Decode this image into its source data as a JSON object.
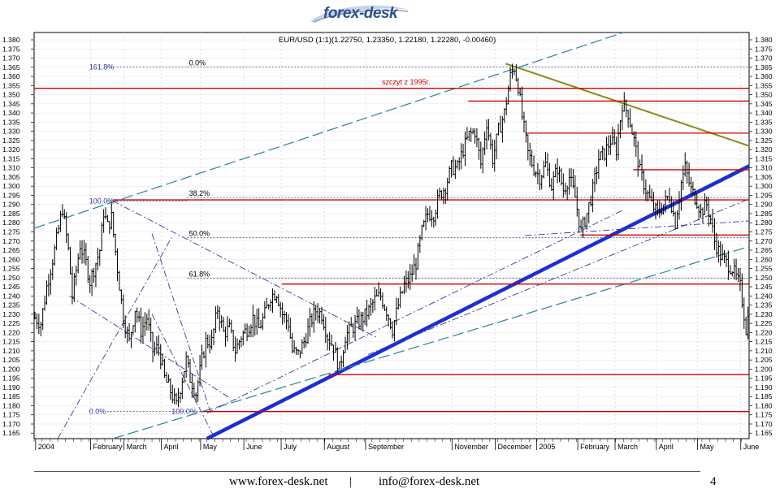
{
  "header": {
    "logo_text": "forex-desk"
  },
  "footer": {
    "website": "www.forex-desk.net",
    "separator": "|",
    "email": "info@forex-desk.net",
    "page_number": "4"
  },
  "chart_data": {
    "type": "candlestick",
    "title": "EUR/USD (1:1)(1.22750, 1.23350, 1.22180, 1.22280, -0.00460)",
    "ylim": [
      1.162,
      1.384
    ],
    "y_ticks": [
      1.165,
      1.17,
      1.175,
      1.18,
      1.185,
      1.19,
      1.195,
      1.2,
      1.205,
      1.21,
      1.215,
      1.22,
      1.225,
      1.23,
      1.235,
      1.24,
      1.245,
      1.25,
      1.255,
      1.26,
      1.265,
      1.27,
      1.275,
      1.28,
      1.285,
      1.29,
      1.295,
      1.3,
      1.305,
      1.31,
      1.315,
      1.32,
      1.325,
      1.33,
      1.335,
      1.34,
      1.345,
      1.35,
      1.355,
      1.36,
      1.365,
      1.37,
      1.375,
      1.38
    ],
    "x_labels": [
      {
        "label": "2004",
        "idx": 2
      },
      {
        "label": "February",
        "idx": 30
      },
      {
        "label": "March",
        "idx": 47
      },
      {
        "label": "April",
        "idx": 66
      },
      {
        "label": "May",
        "idx": 86
      },
      {
        "label": "June",
        "idx": 108
      },
      {
        "label": "July",
        "idx": 127
      },
      {
        "label": "August",
        "idx": 149
      },
      {
        "label": "September",
        "idx": 170
      },
      {
        "label": "November",
        "idx": 214
      },
      {
        "label": "December",
        "idx": 236
      },
      {
        "label": "2005",
        "idx": 257
      },
      {
        "label": "February",
        "idx": 278
      },
      {
        "label": "March",
        "idx": 297
      },
      {
        "label": "April",
        "idx": 318
      },
      {
        "label": "May",
        "idx": 339
      },
      {
        "label": "June",
        "idx": 361
      }
    ],
    "series_close_points": [
      [
        0,
        1.228
      ],
      [
        3,
        1.225
      ],
      [
        6,
        1.245
      ],
      [
        10,
        1.265
      ],
      [
        14,
        1.288
      ],
      [
        17,
        1.265
      ],
      [
        19,
        1.24
      ],
      [
        23,
        1.268
      ],
      [
        26,
        1.258
      ],
      [
        28,
        1.248
      ],
      [
        31,
        1.258
      ],
      [
        33,
        1.265
      ],
      [
        35,
        1.286
      ],
      [
        37,
        1.278
      ],
      [
        39,
        1.283
      ],
      [
        42,
        1.255
      ],
      [
        45,
        1.228
      ],
      [
        48,
        1.215
      ],
      [
        51,
        1.233
      ],
      [
        54,
        1.221
      ],
      [
        57,
        1.228
      ],
      [
        60,
        1.21
      ],
      [
        63,
        1.212
      ],
      [
        66,
        1.195
      ],
      [
        69,
        1.188
      ],
      [
        72,
        1.18
      ],
      [
        74,
        1.19
      ],
      [
        77,
        1.205
      ],
      [
        79,
        1.195
      ],
      [
        82,
        1.187
      ],
      [
        85,
        1.205
      ],
      [
        87,
        1.215
      ],
      [
        90,
        1.215
      ],
      [
        93,
        1.233
      ],
      [
        96,
        1.22
      ],
      [
        99,
        1.222
      ],
      [
        102,
        1.21
      ],
      [
        105,
        1.218
      ],
      [
        108,
        1.222
      ],
      [
        111,
        1.228
      ],
      [
        114,
        1.222
      ],
      [
        117,
        1.23
      ],
      [
        120,
        1.24
      ],
      [
        123,
        1.242
      ],
      [
        126,
        1.23
      ],
      [
        129,
        1.225
      ],
      [
        131,
        1.21
      ],
      [
        134,
        1.208
      ],
      [
        137,
        1.215
      ],
      [
        140,
        1.225
      ],
      [
        143,
        1.232
      ],
      [
        146,
        1.23
      ],
      [
        149,
        1.218
      ],
      [
        152,
        1.212
      ],
      [
        155,
        1.2
      ],
      [
        158,
        1.218
      ],
      [
        161,
        1.222
      ],
      [
        164,
        1.225
      ],
      [
        167,
        1.228
      ],
      [
        170,
        1.232
      ],
      [
        173,
        1.238
      ],
      [
        176,
        1.24
      ],
      [
        179,
        1.232
      ],
      [
        182,
        1.222
      ],
      [
        185,
        1.235
      ],
      [
        188,
        1.246
      ],
      [
        191,
        1.25
      ],
      [
        194,
        1.258
      ],
      [
        197,
        1.275
      ],
      [
        200,
        1.285
      ],
      [
        203,
        1.285
      ],
      [
        206,
        1.295
      ],
      [
        209,
        1.3
      ],
      [
        212,
        1.31
      ],
      [
        215,
        1.31
      ],
      [
        218,
        1.32
      ],
      [
        221,
        1.328
      ],
      [
        224,
        1.33
      ],
      [
        227,
        1.312
      ],
      [
        230,
        1.335
      ],
      [
        233,
        1.315
      ],
      [
        236,
        1.33
      ],
      [
        239,
        1.34
      ],
      [
        242,
        1.36
      ],
      [
        244,
        1.365
      ],
      [
        246,
        1.355
      ],
      [
        248,
        1.338
      ],
      [
        251,
        1.318
      ],
      [
        254,
        1.31
      ],
      [
        257,
        1.305
      ],
      [
        260,
        1.312
      ],
      [
        263,
        1.3
      ],
      [
        266,
        1.31
      ],
      [
        269,
        1.298
      ],
      [
        272,
        1.305
      ],
      [
        275,
        1.294
      ],
      [
        278,
        1.275
      ],
      [
        281,
        1.285
      ],
      [
        284,
        1.298
      ],
      [
        287,
        1.315
      ],
      [
        290,
        1.318
      ],
      [
        293,
        1.325
      ],
      [
        296,
        1.32
      ],
      [
        299,
        1.345
      ],
      [
        302,
        1.34
      ],
      [
        305,
        1.325
      ],
      [
        308,
        1.308
      ],
      [
        311,
        1.298
      ],
      [
        314,
        1.29
      ],
      [
        317,
        1.285
      ],
      [
        320,
        1.29
      ],
      [
        323,
        1.295
      ],
      [
        326,
        1.28
      ],
      [
        329,
        1.302
      ],
      [
        331,
        1.31
      ],
      [
        334,
        1.298
      ],
      [
        337,
        1.292
      ],
      [
        339,
        1.286
      ],
      [
        342,
        1.29
      ],
      [
        344,
        1.282
      ],
      [
        346,
        1.27
      ],
      [
        349,
        1.262
      ],
      [
        352,
        1.258
      ],
      [
        355,
        1.255
      ],
      [
        357,
        1.25
      ],
      [
        359,
        1.245
      ],
      [
        361,
        1.23
      ],
      [
        362,
        1.222
      ],
      [
        363,
        1.228
      ]
    ],
    "n_bars": 364,
    "horizontal_levels": [
      {
        "price": 1.3535,
        "from": 0,
        "to": 364,
        "color": "#cc0000"
      },
      {
        "price": 1.3465,
        "from": 221,
        "to": 364,
        "color": "#cc0000"
      },
      {
        "price": 1.329,
        "from": 250,
        "to": 364,
        "color": "#cc0000"
      },
      {
        "price": 1.309,
        "from": 305,
        "to": 364,
        "color": "#cc0000"
      },
      {
        "price": 1.2925,
        "from": 40,
        "to": 364,
        "color": "#cc0000"
      },
      {
        "price": 1.2733,
        "from": 278,
        "to": 364,
        "color": "#cc0000"
      },
      {
        "price": 1.2465,
        "from": 126,
        "to": 364,
        "color": "#cc0000"
      },
      {
        "price": 1.197,
        "from": 150,
        "to": 364,
        "color": "#cc0000"
      },
      {
        "price": 1.1768,
        "from": 86,
        "to": 364,
        "color": "#cc0000"
      }
    ],
    "fibonacci": [
      {
        "pct": "0.0%",
        "price": 1.3652
      },
      {
        "pct": "38.2%",
        "price": 1.2938
      },
      {
        "pct": "50.0%",
        "price": 1.2718
      },
      {
        "pct": "61.8%",
        "price": 1.2496
      }
    ],
    "fib_left": [
      {
        "pct": "161.8%",
        "price": 1.3652
      },
      {
        "pct": "100.0%",
        "price": 1.2918
      },
      {
        "pct": "0.0%",
        "price": 1.1768
      },
      {
        "pct": "100.0%",
        "price": 1.1768
      }
    ],
    "annotation": "szczyt z 1995r.",
    "trend_lines": [
      {
        "kind": "support-main",
        "color": "#1a2ed6",
        "from": [
          88,
          1.162
        ],
        "to": [
          364,
          1.311
        ]
      },
      {
        "kind": "resistance-olive",
        "color": "#8b8b10",
        "from": [
          240,
          1.367
        ],
        "to": [
          364,
          1.322
        ]
      },
      {
        "kind": "channel-top",
        "color": "#2f8f9c",
        "from": [
          0,
          1.277
        ],
        "to": [
          300,
          1.384
        ]
      },
      {
        "kind": "channel-bottom",
        "color": "#2f8f9c",
        "from": [
          40,
          1.162
        ],
        "to": [
          364,
          1.267
        ]
      }
    ]
  }
}
